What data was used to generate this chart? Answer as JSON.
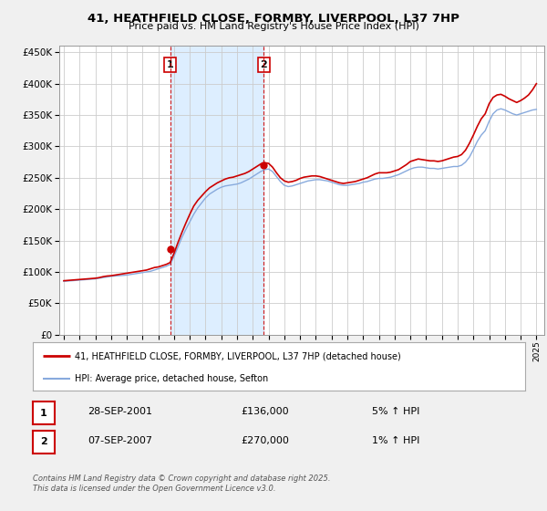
{
  "title1": "41, HEATHFIELD CLOSE, FORMBY, LIVERPOOL, L37 7HP",
  "title2": "Price paid vs. HM Land Registry's House Price Index (HPI)",
  "legend_house": "41, HEATHFIELD CLOSE, FORMBY, LIVERPOOL, L37 7HP (detached house)",
  "legend_hpi": "HPI: Average price, detached house, Sefton",
  "footnote1": "Contains HM Land Registry data © Crown copyright and database right 2025.",
  "footnote2": "This data is licensed under the Open Government Licence v3.0.",
  "sale1_label": "1",
  "sale1_date": "28-SEP-2001",
  "sale1_price": "£136,000",
  "sale1_hpi": "5% ↑ HPI",
  "sale2_label": "2",
  "sale2_date": "07-SEP-2007",
  "sale2_price": "£270,000",
  "sale2_hpi": "1% ↑ HPI",
  "house_color": "#cc0000",
  "hpi_color": "#88aadd",
  "shade_color": "#ddeeff",
  "bg_color": "#f0f0f0",
  "ylim": [
    0,
    460000
  ],
  "yticks": [
    0,
    50000,
    100000,
    150000,
    200000,
    250000,
    300000,
    350000,
    400000,
    450000
  ],
  "sale1_year": 2001.75,
  "sale2_year": 2007.69,
  "sale1_value": 136000,
  "sale2_value": 270000,
  "xmin": 1994.7,
  "xmax": 2025.5
}
